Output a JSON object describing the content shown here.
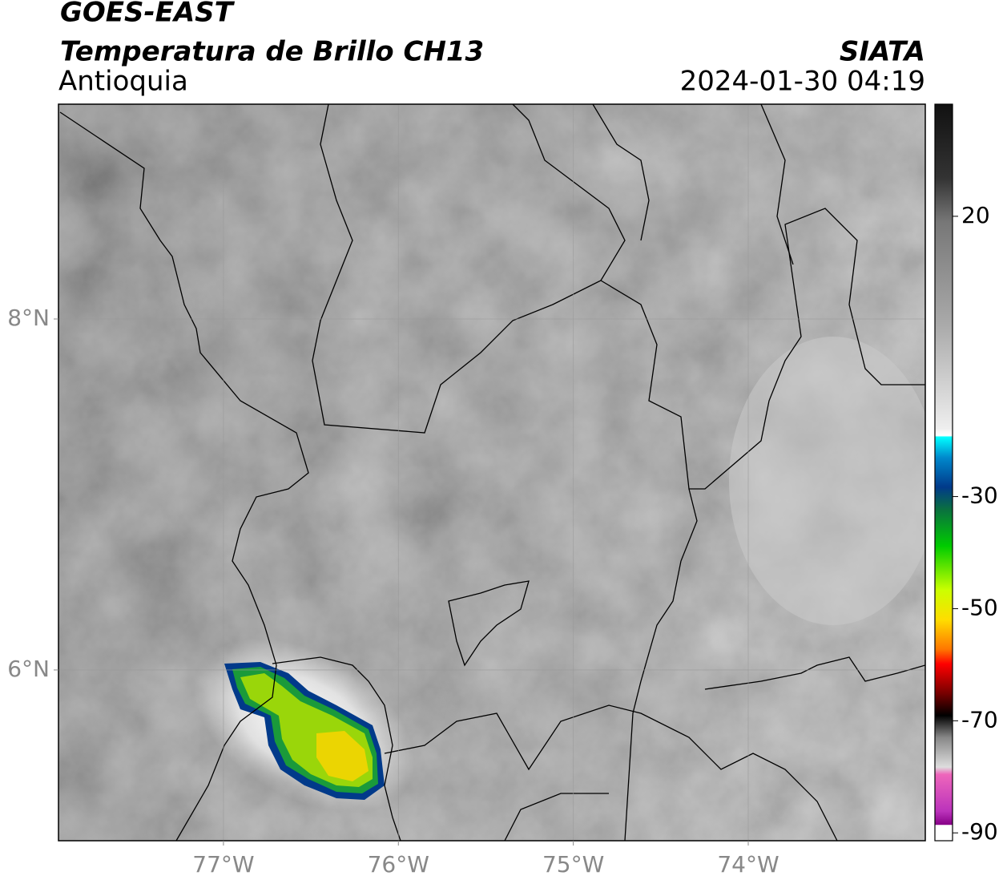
{
  "header": {
    "satellite": "GOES-EAST",
    "product": "Temperatura de Brillo CH13",
    "region": "Antioquia",
    "agency": "SIATA",
    "datetime": "2024-01-30 04:19"
  },
  "map": {
    "xlim": [
      -77.943,
      -72.988
    ],
    "ylim": [
      5.027,
      9.224
    ],
    "xticks": [
      {
        "value": -77,
        "label": "77°W"
      },
      {
        "value": -76,
        "label": "76°W"
      },
      {
        "value": -75,
        "label": "75°W"
      },
      {
        "value": -74,
        "label": "74°W"
      }
    ],
    "yticks": [
      {
        "value": 6,
        "label": "6°N"
      },
      {
        "value": 8,
        "label": "8°N"
      }
    ]
  },
  "colorbar": {
    "lim": [
      -91.4,
      40
    ],
    "ticks": [
      20,
      -30,
      -50,
      -70,
      -90
    ]
  }
}
